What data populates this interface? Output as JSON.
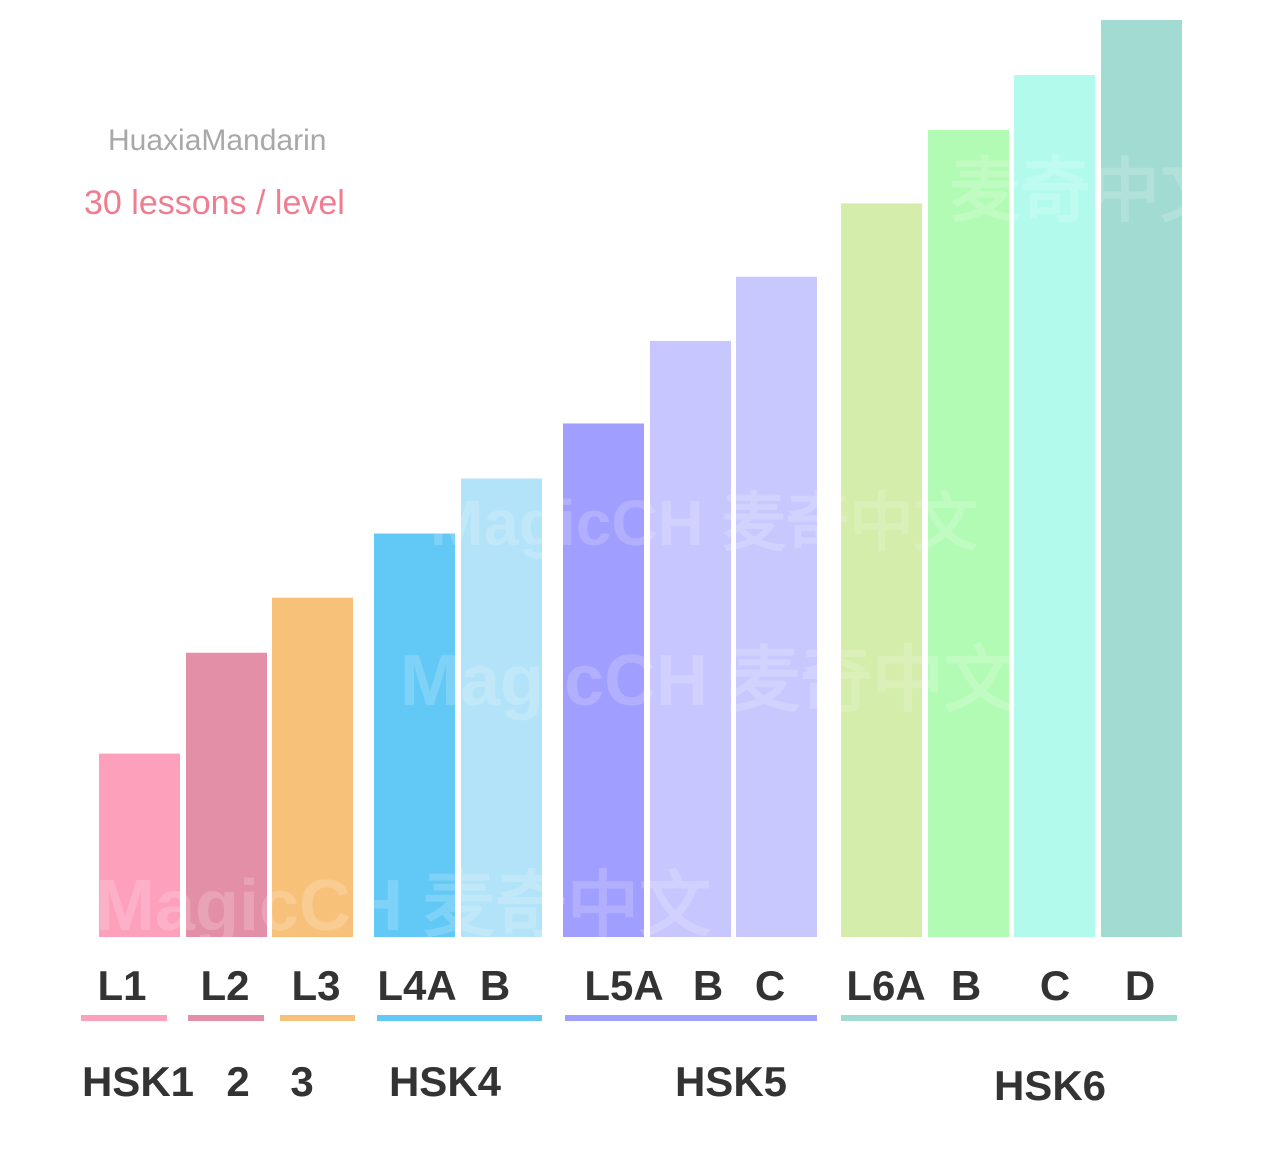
{
  "brand": "HuaxiaMandarin",
  "subtitle": "30 lessons / level",
  "watermark": "MagicCH 麦奇中文",
  "chart_data": {
    "type": "bar",
    "title": "",
    "xlabel": "",
    "ylabel": "",
    "grid": false,
    "categories": [
      "L1",
      "L2",
      "L3",
      "L4A",
      "L4B",
      "L5A",
      "L5B",
      "L5C",
      "L6A",
      "L6B",
      "L6C",
      "L6D"
    ],
    "tick_labels": [
      "L1",
      "L2",
      "L3",
      "L4A",
      "B",
      "L5A",
      "B",
      "C",
      "L6A",
      "B",
      "C",
      "D"
    ],
    "values": [
      20,
      31,
      37,
      44,
      50,
      56,
      65,
      72,
      80,
      88,
      94,
      100
    ],
    "colors": [
      "#fda0bc",
      "#e38fa7",
      "#f7c17a",
      "#62c8f6",
      "#b2e3f8",
      "#a09efe",
      "#c7c6fe",
      "#c8c8fe",
      "#d4edaa",
      "#b2fbb4",
      "#b2fbec",
      "#a1dbd1"
    ],
    "groups": [
      {
        "label": "HSK1",
        "color": "#fda0bc"
      },
      {
        "label": "2",
        "color": "#e38fa7"
      },
      {
        "label": "3",
        "color": "#f7c17a"
      },
      {
        "label": "HSK4",
        "color": "#62c8f6"
      },
      {
        "label": "HSK5",
        "color": "#a09efe"
      },
      {
        "label": "HSK6",
        "color": "#a1dbd1"
      }
    ]
  }
}
